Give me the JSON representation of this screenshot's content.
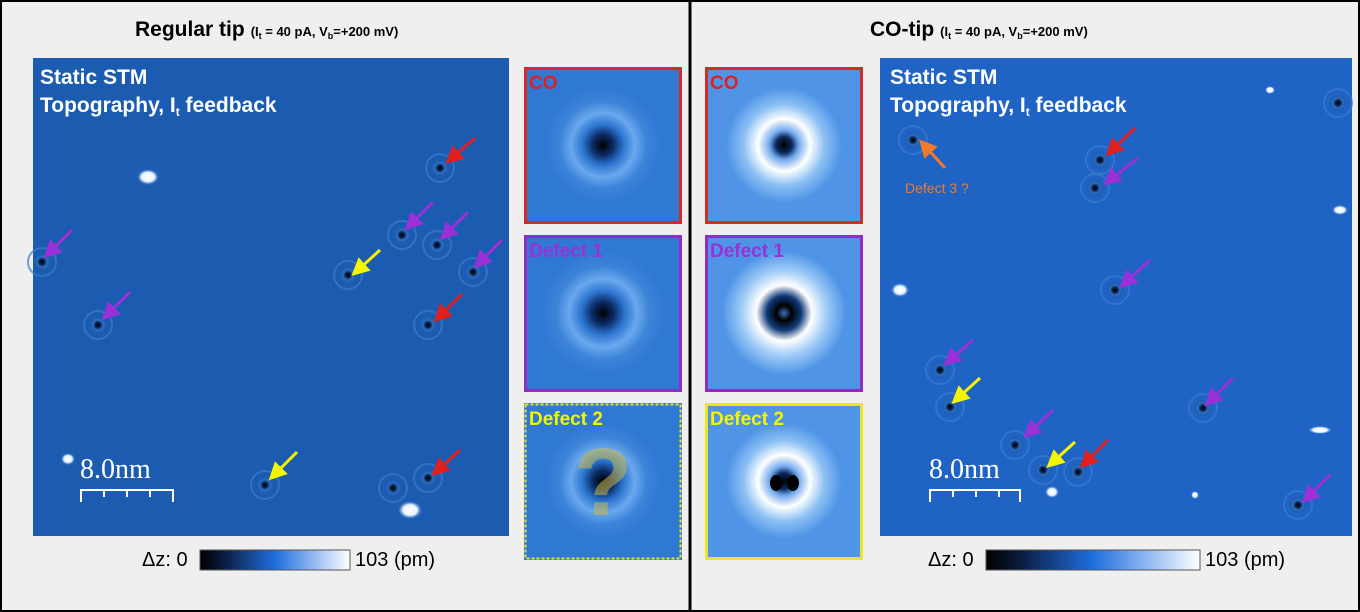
{
  "panels": [
    {
      "title": "Regular tip",
      "conditions": [
        "(I",
        "t",
        " = 40 pA, V",
        "b",
        "=+200 mV)"
      ],
      "image_label": {
        "line1": "Static STM",
        "line2": [
          "Topography, I",
          "t",
          " feedback"
        ]
      },
      "scale_bar": "8.0nm",
      "colorbar": {
        "label": "Δz:",
        "min": "0",
        "max": "103",
        "unit": "(pm)"
      },
      "insets": [
        {
          "label": "CO"
        },
        {
          "label": "Defect 1"
        },
        {
          "label": "Defect 2",
          "mark": "?"
        }
      ]
    },
    {
      "title": "CO-tip",
      "conditions": [
        "(I",
        "t",
        " = 40 pA, V",
        "b",
        "=+200 mV)"
      ],
      "image_label": {
        "line1": "Static STM",
        "line2": [
          "Topography, I",
          "t",
          " feedback"
        ]
      },
      "scale_bar": "8.0nm",
      "colorbar": {
        "label": "Δz:",
        "min": "0",
        "max": "103",
        "unit": "(pm)"
      },
      "insets": [
        {
          "label": "CO"
        },
        {
          "label": "Defect 1"
        },
        {
          "label": "Defect 2"
        }
      ],
      "annotation": "Defect 3 ?"
    }
  ]
}
